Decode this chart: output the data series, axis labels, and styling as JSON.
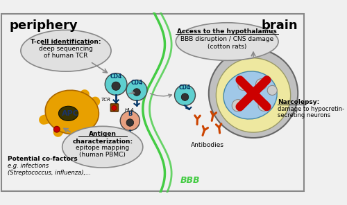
{
  "bg_color": "#f0f0f0",
  "border_color": "#888888",
  "title_periphery": "periphery",
  "title_brain": "brain",
  "bbb_color": "#44cc44",
  "balloon1_text_line1": "T-cell identification:",
  "balloon1_text_line2": "deep sequencing",
  "balloon1_text_line3": "of human TCR",
  "balloon2_text_line1": "Access to the hypothalamus",
  "balloon2_text_line2": "BBB disruption / CNS damage",
  "balloon2_text_line3": "(cotton rats)",
  "balloon3_text_line1": "Antigen",
  "balloon3_text_line2": "characterization:",
  "balloon3_text_line3": "epitope mapping",
  "balloon3_text_line4": "(human PBMC)",
  "narcolepsy_line1": "Narcolepsy:",
  "narcolepsy_line2": "damage to hypocretin-",
  "narcolepsy_line3": "secreting neurons",
  "cofactors_line1": "Potential co-factors",
  "cofactors_line2": "e.g. infections",
  "cofactors_line3": "(Streptococcus, influenza),...",
  "antibodies_label": "Antibodies",
  "cd4_color": "#5ecfcf",
  "b_cell_color": "#e8a080",
  "apc_color": "#e8a000",
  "tcr_color": "#003366",
  "hla_color": "#884400",
  "antigen_color": "#cc0000",
  "neuron_fill": "#a0c8e8",
  "cell_outline": "#444444",
  "balloon_fill": "#e0e0e0",
  "balloon_edge": "#888888",
  "arrow_color": "#888888",
  "cross_color": "#cc0000",
  "antibody_color": "#cc4400"
}
